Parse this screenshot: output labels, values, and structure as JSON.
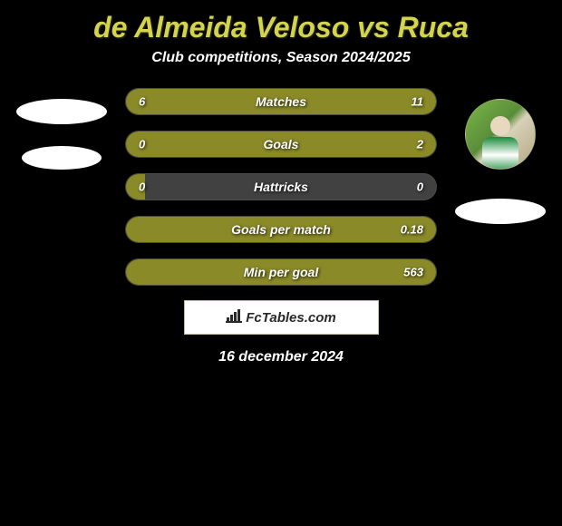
{
  "title": "de Almeida Veloso vs Ruca",
  "subtitle": "Club competitions, Season 2024/2025",
  "date": "16 december 2024",
  "logo_text": "FcTables.com",
  "colors": {
    "background": "#000000",
    "title": "#d4d44a",
    "bar_fill": "#8a8a28",
    "bar_bg": "#414141",
    "text": "#ffffff"
  },
  "stats": [
    {
      "label": "Matches",
      "left_value": "6",
      "right_value": "11",
      "left_pct": 35,
      "right_pct": 65
    },
    {
      "label": "Goals",
      "left_value": "0",
      "right_value": "2",
      "left_pct": 6,
      "right_pct": 94
    },
    {
      "label": "Hattricks",
      "left_value": "0",
      "right_value": "0",
      "left_pct": 6,
      "right_pct": 0
    },
    {
      "label": "Goals per match",
      "left_value": "",
      "right_value": "0.18",
      "left_pct": 0,
      "right_pct": 100
    },
    {
      "label": "Min per goal",
      "left_value": "",
      "right_value": "563",
      "left_pct": 0,
      "right_pct": 100
    }
  ]
}
